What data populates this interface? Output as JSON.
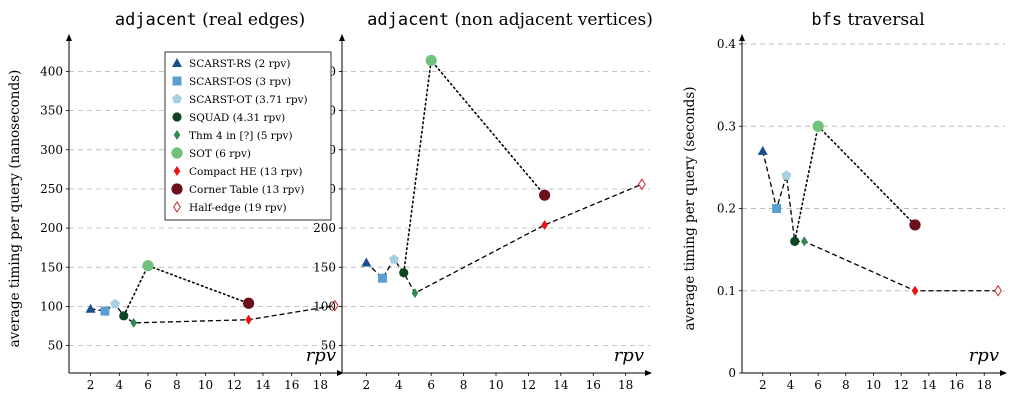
{
  "legend": [
    {
      "label": "SCARST-RS (2 rpv)",
      "marker": "triangle",
      "color": "#1a4f8b"
    },
    {
      "label": "SCARST-OS (3 rpv)",
      "marker": "square",
      "color": "#5b9fd0"
    },
    {
      "label": "SCARST-OT (3.71 rpv)",
      "marker": "pentagon",
      "color": "#a6cfe3"
    },
    {
      "label": "SQUAD (4.31 rpv)",
      "marker": "circle",
      "color": "#0d4423"
    },
    {
      "label": "Thm 4 in [?] (5 rpv)",
      "marker": "diamond",
      "color": "#2e8b4e"
    },
    {
      "label": "SOT (6 rpv)",
      "marker": "circle-large",
      "color": "#70c179"
    },
    {
      "label": "Compact HE (13 rpv)",
      "marker": "diamond",
      "color": "#ee1111"
    },
    {
      "label": "Corner Table (13 rpv)",
      "marker": "circle-large",
      "color": "#6b0f1a"
    },
    {
      "label": "Half-edge (19 rpv)",
      "marker": "diamond-open",
      "color": "#cc2222"
    }
  ],
  "chart_data": [
    {
      "type": "scatter",
      "title_code": "adjacent",
      "title_rest": "(real edges)",
      "xlabel": "rpv",
      "ylabel": "average timing per query (nanoseconds)",
      "xlim": [
        0.5,
        19.5
      ],
      "ylim": [
        15,
        435
      ],
      "xticks": [
        2,
        4,
        6,
        8,
        10,
        12,
        14,
        16,
        18
      ],
      "yticks": [
        50,
        100,
        150,
        200,
        250,
        300,
        350,
        400
      ],
      "grid": true,
      "legend_position": "top-right",
      "points": [
        {
          "x": 2,
          "y": 97
        },
        {
          "x": 3,
          "y": 94
        },
        {
          "x": 3.71,
          "y": 103
        },
        {
          "x": 4.31,
          "y": 88
        },
        {
          "x": 5,
          "y": 79
        },
        {
          "x": 6,
          "y": 152
        },
        {
          "x": 13,
          "y": 83
        },
        {
          "x": 13,
          "y": 104
        },
        {
          "x": 19,
          "y": 101
        }
      ]
    },
    {
      "type": "scatter",
      "title_code": "adjacent",
      "title_rest": "(non adjacent vertices)",
      "xlabel": "rpv",
      "ylabel": "",
      "xlim": [
        0.5,
        19.5
      ],
      "ylim": [
        15,
        435
      ],
      "xticks": [
        2,
        4,
        6,
        8,
        10,
        12,
        14,
        16,
        18
      ],
      "yticks": [
        50,
        100,
        150,
        200,
        250,
        300,
        350,
        400
      ],
      "grid": true,
      "points": [
        {
          "x": 2,
          "y": 156
        },
        {
          "x": 3,
          "y": 136
        },
        {
          "x": 3.71,
          "y": 160
        },
        {
          "x": 4.31,
          "y": 143
        },
        {
          "x": 5,
          "y": 117
        },
        {
          "x": 6,
          "y": 414
        },
        {
          "x": 13,
          "y": 204
        },
        {
          "x": 13,
          "y": 242
        },
        {
          "x": 19,
          "y": 256
        }
      ]
    },
    {
      "type": "scatter",
      "title_code": "bfs",
      "title_rest": "traversal",
      "xlabel": "rpv",
      "ylabel": "average timing per query (seconds)",
      "xlim": [
        0.5,
        19.5
      ],
      "ylim": [
        0,
        0.4
      ],
      "xticks": [
        2,
        4,
        6,
        8,
        10,
        12,
        14,
        16,
        18
      ],
      "yticks": [
        0,
        0.1,
        0.2,
        0.3,
        0.4
      ],
      "ytick_labels": [
        "0",
        "0.1",
        "0.2",
        "0.3",
        "0.4"
      ],
      "grid": true,
      "points": [
        {
          "x": 2,
          "y": 0.27
        },
        {
          "x": 3,
          "y": 0.2
        },
        {
          "x": 3.71,
          "y": 0.24
        },
        {
          "x": 4.31,
          "y": 0.16
        },
        {
          "x": 5,
          "y": 0.16
        },
        {
          "x": 6,
          "y": 0.3
        },
        {
          "x": 13,
          "y": 0.1
        },
        {
          "x": 13,
          "y": 0.18
        },
        {
          "x": 19,
          "y": 0.1
        }
      ]
    }
  ]
}
